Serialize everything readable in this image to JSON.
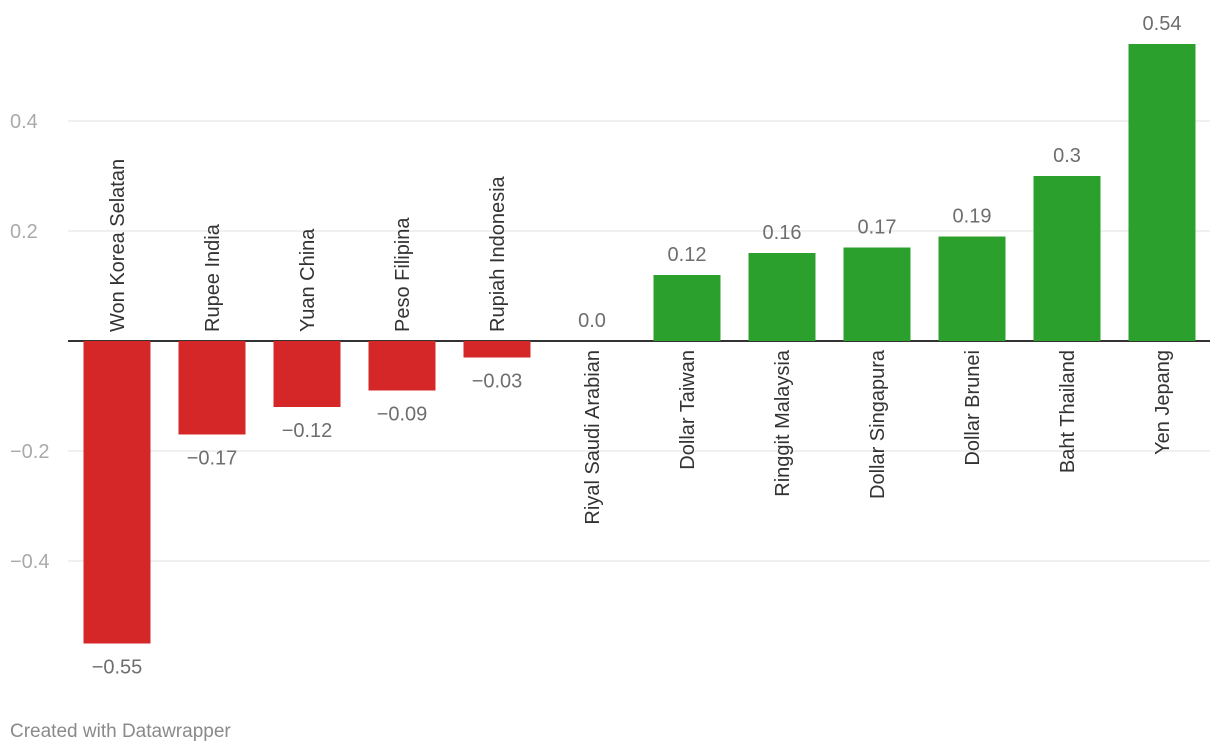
{
  "chart_data": {
    "type": "bar",
    "categories": [
      "Won Korea Selatan",
      "Rupee India",
      "Yuan China",
      "Peso Filipina",
      "Rupiah Indonesia",
      "Riyal Saudi Arabian",
      "Dollar Taiwan",
      "Ringgit Malaysia",
      "Dollar Singapura",
      "Dollar Brunei",
      "Baht Thailand",
      "Yen Jepang"
    ],
    "values": [
      -0.55,
      -0.17,
      -0.12,
      -0.09,
      -0.03,
      0.0,
      0.12,
      0.16,
      0.17,
      0.19,
      0.3,
      0.54
    ],
    "value_labels": [
      "−0.55",
      "−0.17",
      "−0.12",
      "−0.09",
      "−0.03",
      "0.0",
      "0.12",
      "0.16",
      "0.17",
      "0.19",
      "0.3",
      "0.54"
    ],
    "yticks": [
      0.4,
      0.2,
      -0.2,
      -0.4
    ],
    "ytick_labels": [
      "0.4",
      "0.2",
      "−0.2",
      "−0.4"
    ],
    "ylim": [
      -0.55,
      0.54
    ],
    "grid": true,
    "colors": {
      "positive": "#2ca02c",
      "negative": "#d62728",
      "zero": "#2ca02c"
    }
  },
  "footer": {
    "credit": "Created with Datawrapper"
  },
  "palette": {
    "grid": "#e2e2e2",
    "tick_text": "#aaaaaa",
    "label_text": "#333333",
    "value_text": "#6e6e6e",
    "axis": "#333333"
  }
}
